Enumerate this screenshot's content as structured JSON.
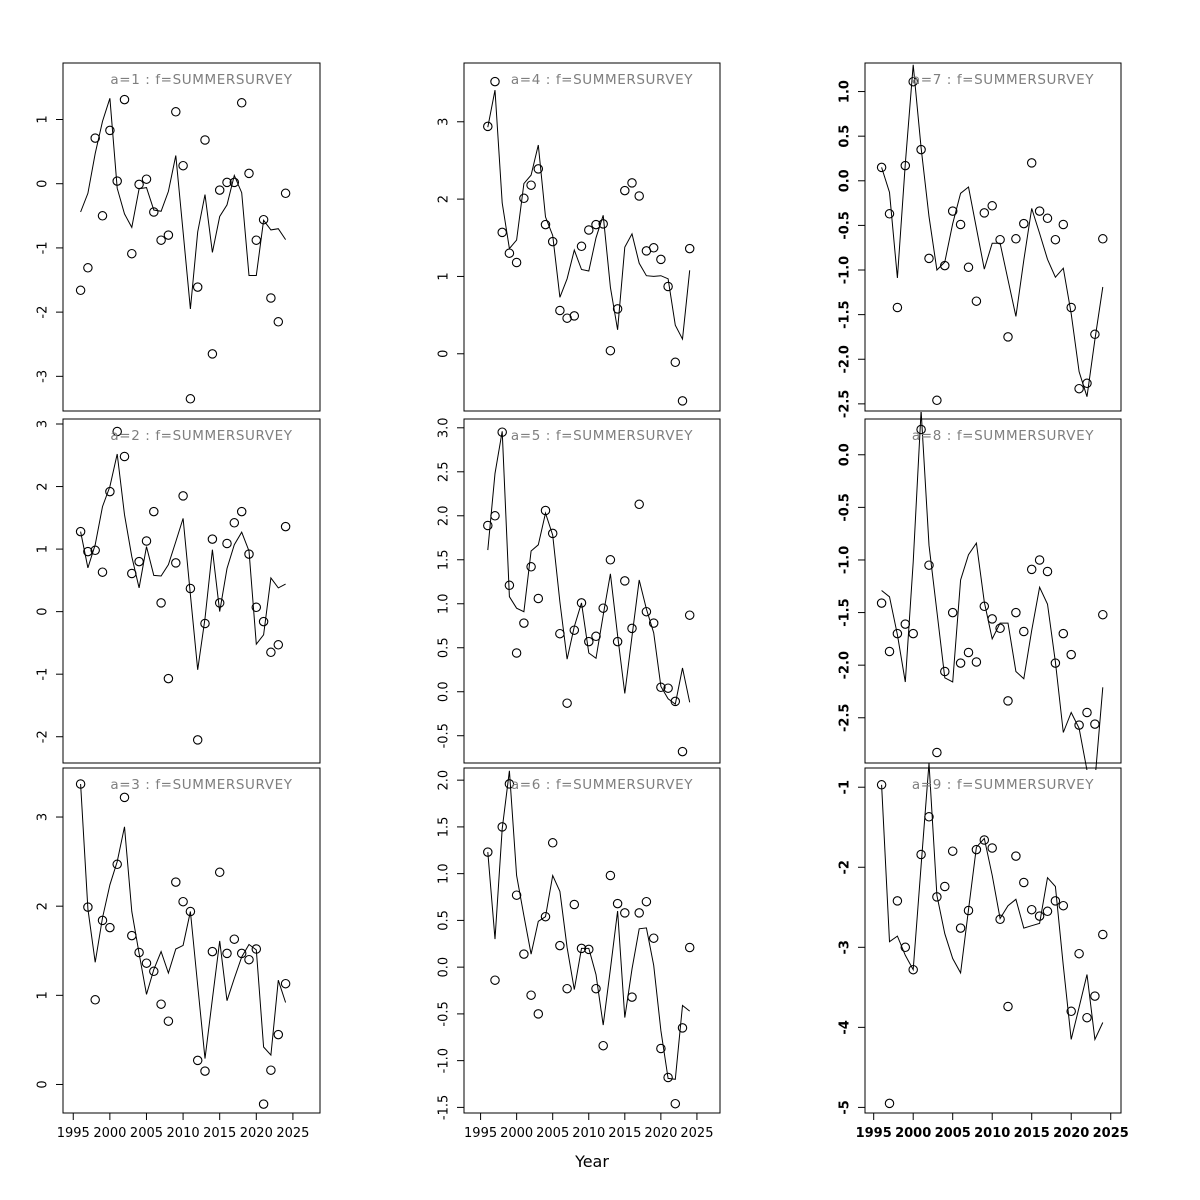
{
  "figure": {
    "xlabel": "Year",
    "x_tick_years": [
      1995,
      2000,
      2005,
      2010,
      2015,
      2020,
      2025
    ],
    "x_tick_labels": [
      "1995",
      "2000",
      "2005",
      "2010",
      "2015",
      "2020",
      "2025"
    ],
    "years": [
      1996,
      1997,
      1998,
      1999,
      2000,
      2001,
      2002,
      2003,
      2004,
      2005,
      2006,
      2007,
      2008,
      2009,
      2010,
      2011,
      2012,
      2013,
      2014,
      2015,
      2016,
      2017,
      2018,
      2019,
      2020,
      2021,
      2022,
      2023,
      2024
    ],
    "title_color": "#7f7f7f",
    "axis_color": "#000000",
    "point_color": "#000000",
    "line_color": "#000000",
    "background_color": "#ffffff"
  },
  "chart_data": [
    {
      "type": "scatter",
      "id": "a1",
      "title": "a=1 : f=SUMMERSURVEY",
      "row": 1,
      "col": 1,
      "xlim": [
        1993.6,
        2028.7
      ],
      "ylim": [
        -3.54,
        1.88
      ],
      "y_tick_values": [
        1,
        0,
        -1,
        -2,
        -3
      ],
      "y_tick_labels": [
        "1",
        "0",
        "-1",
        "-2",
        "-3"
      ],
      "scatter": [
        -1.66,
        -1.31,
        0.71,
        -0.5,
        0.83,
        0.04,
        1.31,
        -1.09,
        -0.01,
        0.07,
        -0.44,
        -0.88,
        -0.8,
        1.12,
        0.28,
        -3.35,
        -1.61,
        0.68,
        -2.65,
        -0.1,
        0.02,
        0.02,
        1.26,
        0.16,
        -0.88,
        -0.56,
        -1.78,
        -2.15,
        -0.15
      ],
      "line": [
        -0.44,
        -0.15,
        0.47,
        0.97,
        1.33,
        -0.07,
        -0.47,
        -0.68,
        -0.08,
        -0.06,
        -0.41,
        -0.43,
        -0.12,
        0.44,
        -0.75,
        -1.95,
        -0.75,
        -0.17,
        -1.07,
        -0.51,
        -0.33,
        0.13,
        -0.14,
        -1.43,
        -1.43,
        -0.57,
        -0.72,
        -0.7,
        -0.87
      ]
    },
    {
      "type": "scatter",
      "id": "a2",
      "title": "a=2 : f=SUMMERSURVEY",
      "row": 2,
      "col": 1,
      "xlim": [
        1993.6,
        2028.7
      ],
      "ylim": [
        -2.42,
        3.08
      ],
      "y_tick_values": [
        3,
        2,
        1,
        0,
        -1,
        -2
      ],
      "y_tick_labels": [
        "3",
        "2",
        "1",
        "0",
        "-1",
        "-2"
      ],
      "scatter": [
        1.28,
        0.96,
        0.98,
        0.63,
        1.92,
        2.88,
        2.48,
        0.61,
        0.8,
        1.13,
        1.6,
        0.14,
        -1.07,
        0.78,
        1.85,
        0.37,
        -2.05,
        -0.19,
        1.16,
        0.14,
        1.09,
        1.42,
        1.6,
        0.92,
        0.07,
        -0.16,
        -0.65,
        -0.53,
        1.36
      ],
      "line": [
        1.28,
        0.7,
        1.07,
        1.68,
        2.0,
        2.52,
        1.55,
        0.88,
        0.38,
        1.04,
        0.58,
        0.57,
        0.75,
        1.12,
        1.49,
        0.27,
        -0.93,
        -0.11,
        0.99,
        0.0,
        0.69,
        1.07,
        1.27,
        0.97,
        -0.52,
        -0.37,
        0.54,
        0.38,
        0.44
      ]
    },
    {
      "type": "scatter",
      "id": "a3",
      "title": "a=3 : f=SUMMERSURVEY",
      "row": 3,
      "col": 1,
      "xlim": [
        1993.6,
        2028.7
      ],
      "ylim": [
        -0.32,
        3.55
      ],
      "y_tick_values": [
        3,
        2,
        1,
        0
      ],
      "y_tick_labels": [
        "3",
        "2",
        "1",
        "0"
      ],
      "scatter": [
        3.37,
        1.99,
        0.95,
        1.84,
        1.76,
        2.47,
        3.22,
        1.67,
        1.48,
        1.36,
        1.27,
        0.9,
        0.71,
        2.27,
        2.05,
        1.94,
        0.27,
        0.15,
        1.49,
        2.38,
        1.47,
        1.63,
        1.47,
        1.4,
        1.52,
        -0.22,
        0.16,
        0.56,
        1.13
      ],
      "line": [
        3.37,
        1.97,
        1.37,
        1.87,
        2.24,
        2.5,
        2.89,
        1.94,
        1.47,
        1.01,
        1.29,
        1.49,
        1.25,
        1.52,
        1.56,
        1.94,
        1.11,
        0.29,
        0.96,
        1.61,
        0.94,
        1.19,
        1.43,
        1.57,
        1.51,
        0.42,
        0.33,
        1.17,
        0.92
      ]
    },
    {
      "type": "scatter",
      "id": "a4",
      "title": "a=4 : f=SUMMERSURVEY",
      "row": 1,
      "col": 2,
      "xlim": [
        1992.7,
        2028.2
      ],
      "ylim": [
        -0.74,
        3.76
      ],
      "y_tick_values": [
        3,
        2,
        1,
        0
      ],
      "y_tick_labels": [
        "3",
        "2",
        "1",
        "0"
      ],
      "scatter": [
        2.94,
        3.52,
        1.57,
        1.3,
        1.18,
        2.01,
        2.18,
        2.39,
        1.67,
        1.45,
        0.56,
        0.46,
        0.49,
        1.39,
        1.6,
        1.67,
        1.68,
        0.04,
        0.58,
        2.11,
        2.21,
        2.04,
        1.33,
        1.37,
        1.22,
        0.87,
        -0.11,
        -0.61,
        1.36
      ],
      "line": [
        2.93,
        3.41,
        1.95,
        1.36,
        1.47,
        2.2,
        2.31,
        2.7,
        1.77,
        1.53,
        0.73,
        0.97,
        1.34,
        1.09,
        1.07,
        1.5,
        1.79,
        0.86,
        0.31,
        1.38,
        1.55,
        1.17,
        1.01,
        1.0,
        1.01,
        0.97,
        0.37,
        0.19,
        1.08
      ]
    },
    {
      "type": "scatter",
      "id": "a5",
      "title": "a=5 : f=SUMMERSURVEY",
      "row": 2,
      "col": 2,
      "xlim": [
        1992.7,
        2028.2
      ],
      "ylim": [
        -0.81,
        3.1
      ],
      "y_tick_values": [
        3.0,
        2.5,
        2.0,
        1.5,
        1.0,
        0.5,
        0.0,
        -0.5
      ],
      "y_tick_labels": [
        "3.0",
        "2.5",
        "2.0",
        "1.5",
        "1.0",
        "0.5",
        "0.0",
        "-0.5"
      ],
      "scatter": [
        1.89,
        2.0,
        2.95,
        1.21,
        0.44,
        0.78,
        1.42,
        1.06,
        2.06,
        1.8,
        0.66,
        -0.13,
        0.7,
        1.01,
        0.57,
        0.63,
        0.95,
        1.5,
        0.57,
        1.26,
        0.72,
        2.13,
        0.91,
        0.78,
        0.05,
        0.04,
        -0.11,
        -0.68,
        0.87
      ],
      "line": [
        1.61,
        2.48,
        2.96,
        1.08,
        0.95,
        0.91,
        1.6,
        1.67,
        2.03,
        1.78,
        1.02,
        0.37,
        0.74,
        1.01,
        0.44,
        0.38,
        0.87,
        1.34,
        0.64,
        -0.02,
        0.63,
        1.27,
        0.94,
        0.67,
        0.06,
        -0.08,
        -0.14,
        0.27,
        -0.12
      ]
    },
    {
      "type": "scatter",
      "id": "a6",
      "title": "a=6 : f=SUMMERSURVEY",
      "row": 3,
      "col": 2,
      "xlim": [
        1992.7,
        2028.2
      ],
      "ylim": [
        -1.56,
        2.13
      ],
      "y_tick_values": [
        2.0,
        1.5,
        1.0,
        0.5,
        0.0,
        -0.5,
        -1.0,
        -1.5
      ],
      "y_tick_labels": [
        "2.0",
        "1.5",
        "1.0",
        "0.5",
        "0.0",
        "-0.5",
        "-1.0",
        "-1.5"
      ],
      "scatter": [
        1.23,
        -0.14,
        1.5,
        1.96,
        0.77,
        0.14,
        -0.3,
        -0.5,
        0.54,
        1.33,
        0.23,
        -0.23,
        0.67,
        0.2,
        0.19,
        -0.23,
        -0.84,
        0.98,
        0.68,
        0.58,
        -0.32,
        0.58,
        0.7,
        0.31,
        -0.87,
        -1.18,
        -1.46,
        -0.65,
        0.21
      ],
      "line": [
        1.23,
        0.3,
        1.48,
        2.1,
        0.98,
        0.55,
        0.14,
        0.49,
        0.54,
        0.98,
        0.81,
        0.21,
        -0.24,
        0.2,
        0.2,
        -0.08,
        -0.62,
        -0.02,
        0.6,
        -0.54,
        -0.02,
        0.41,
        0.42,
        0.02,
        -0.68,
        -1.19,
        -1.2,
        -0.41,
        -0.47
      ]
    },
    {
      "type": "scatter",
      "id": "a7",
      "title": "a=7 : f=SUMMERSURVEY",
      "row": 1,
      "col": 3,
      "xlim": [
        1993.9,
        2026.3
      ],
      "ylim": [
        -2.58,
        1.32
      ],
      "y_tick_values": [
        1.0,
        0.5,
        0.0,
        -0.5,
        -1.0,
        -1.5,
        -2.0,
        -2.5
      ],
      "y_tick_labels": [
        "1.0",
        "0.5",
        "0.0",
        "-0.5",
        "-1.0",
        "-1.5",
        "-2.0",
        "-2.5"
      ],
      "scatter": [
        0.15,
        -0.37,
        -1.42,
        0.17,
        1.11,
        0.35,
        -0.87,
        -2.46,
        -0.95,
        -0.34,
        -0.49,
        -0.97,
        -1.35,
        -0.36,
        -0.28,
        -0.66,
        -1.75,
        -0.65,
        -0.48,
        0.2,
        -0.34,
        -0.42,
        -0.66,
        -0.49,
        -1.42,
        -2.33,
        -2.27,
        -1.72,
        -0.65
      ],
      "line": [
        0.15,
        -0.13,
        -1.09,
        0.19,
        1.3,
        0.37,
        -0.4,
        -1.0,
        -0.91,
        -0.48,
        -0.14,
        -0.07,
        -0.53,
        -0.99,
        -0.7,
        -0.7,
        -1.11,
        -1.52,
        -0.89,
        -0.31,
        -0.59,
        -0.88,
        -1.08,
        -0.98,
        -1.49,
        -2.14,
        -2.42,
        -1.78,
        -1.19
      ]
    },
    {
      "type": "scatter",
      "id": "a8",
      "title": "a=8 : f=SUMMERSURVEY",
      "row": 2,
      "col": 3,
      "xlim": [
        1993.9,
        2026.3
      ],
      "ylim": [
        -2.93,
        0.34
      ],
      "y_tick_values": [
        0.0,
        -0.5,
        -1.0,
        -1.5,
        -2.0,
        -2.5
      ],
      "y_tick_labels": [
        "0.0",
        "-0.5",
        "-1.0",
        "-1.5",
        "-2.0",
        "-2.5"
      ],
      "scatter": [
        -1.41,
        -1.87,
        -1.7,
        -1.61,
        -1.7,
        0.24,
        -1.05,
        -2.83,
        -2.06,
        -1.5,
        -1.98,
        -1.88,
        -1.97,
        -1.44,
        -1.56,
        -1.65,
        -2.34,
        -1.5,
        -1.68,
        -1.09,
        -1.0,
        -1.11,
        -1.98,
        -1.7,
        -1.9,
        -2.57,
        -2.45,
        -2.56,
        -1.52
      ],
      "line": [
        -1.29,
        -1.35,
        -1.71,
        -2.16,
        -1.02,
        0.42,
        -0.86,
        -1.49,
        -2.12,
        -2.16,
        -1.19,
        -0.95,
        -0.84,
        -1.4,
        -1.75,
        -1.6,
        -1.6,
        -2.06,
        -2.13,
        -1.67,
        -1.26,
        -1.42,
        -1.97,
        -2.64,
        -2.45,
        -2.6,
        -3.0,
        -3.1,
        -2.21
      ]
    },
    {
      "type": "scatter",
      "id": "a9",
      "title": "a=9 : f=SUMMERSURVEY",
      "row": 3,
      "col": 3,
      "xlim": [
        1993.9,
        2026.3
      ],
      "ylim": [
        -5.07,
        -0.76
      ],
      "y_tick_values": [
        -1,
        -2,
        -3,
        -4,
        -5
      ],
      "y_tick_labels": [
        "-1",
        "-2",
        "-3",
        "-4",
        "-5"
      ],
      "scatter": [
        -0.97,
        -4.95,
        -2.42,
        -3.0,
        -3.28,
        -1.84,
        -1.37,
        -2.37,
        -2.24,
        -1.8,
        -2.76,
        -2.54,
        -1.78,
        -1.66,
        -1.76,
        -2.65,
        -3.74,
        -1.86,
        -2.19,
        -2.53,
        -2.61,
        -2.55,
        -2.42,
        -2.48,
        -3.8,
        -3.08,
        -3.88,
        -3.61,
        -2.84
      ],
      "line": [
        -0.97,
        -2.93,
        -2.86,
        -3.1,
        -3.28,
        -1.98,
        -0.7,
        -2.35,
        -2.83,
        -3.14,
        -3.32,
        -2.53,
        -1.75,
        -1.64,
        -2.1,
        -2.64,
        -2.48,
        -2.4,
        -2.76,
        -2.73,
        -2.7,
        -2.13,
        -2.24,
        -3.23,
        -4.15,
        -3.75,
        -3.34,
        -4.15,
        -3.94
      ]
    }
  ]
}
